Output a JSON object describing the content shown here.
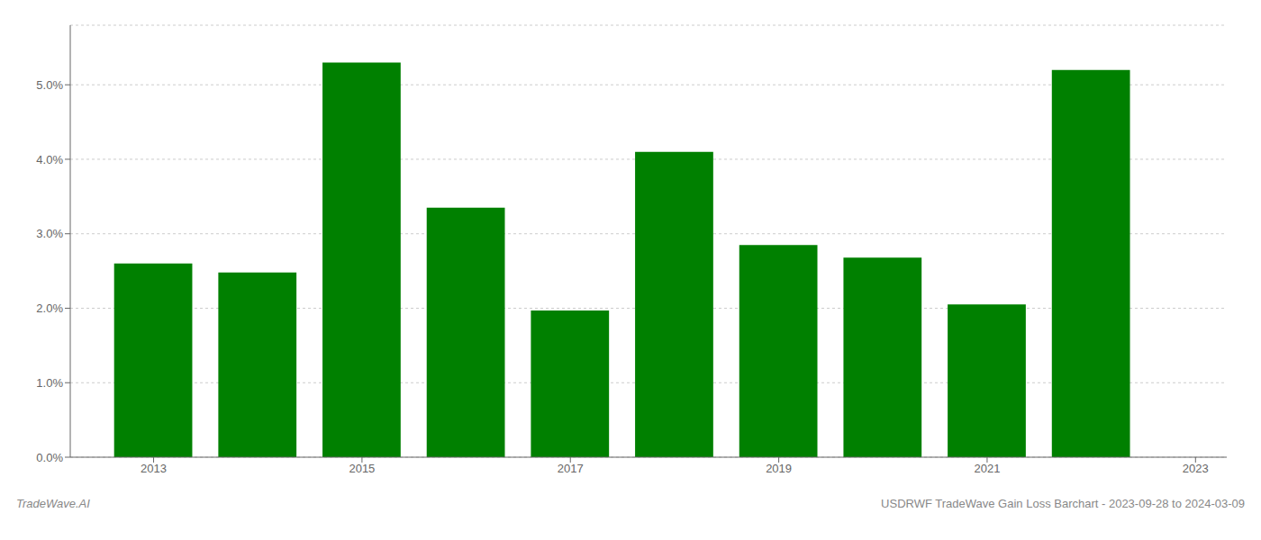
{
  "chart_data": {
    "type": "bar",
    "x": [
      2013,
      2014,
      2015,
      2016,
      2017,
      2018,
      2019,
      2020,
      2021,
      2022
    ],
    "values": [
      0.026,
      0.0248,
      0.053,
      0.0335,
      0.0197,
      0.041,
      0.0285,
      0.0268,
      0.0205,
      0.052
    ],
    "color": "#008000",
    "xlim": [
      2012.2,
      2023.3
    ],
    "xticks": [
      2013,
      2015,
      2017,
      2019,
      2021,
      2023
    ],
    "ylim": [
      0,
      0.058
    ],
    "yticks": [
      {
        "value": 0.0,
        "label": "0.0%"
      },
      {
        "value": 0.01,
        "label": "1.0%"
      },
      {
        "value": 0.02,
        "label": "2.0%"
      },
      {
        "value": 0.03,
        "label": "3.0%"
      },
      {
        "value": 0.04,
        "label": "4.0%"
      },
      {
        "value": 0.05,
        "label": "5.0%"
      }
    ],
    "grid": true,
    "annotations": [
      "TradeWave.AI",
      "USDRWF TradeWave Gain Loss Barchart - 2023-09-28 to 2024-03-09"
    ]
  }
}
